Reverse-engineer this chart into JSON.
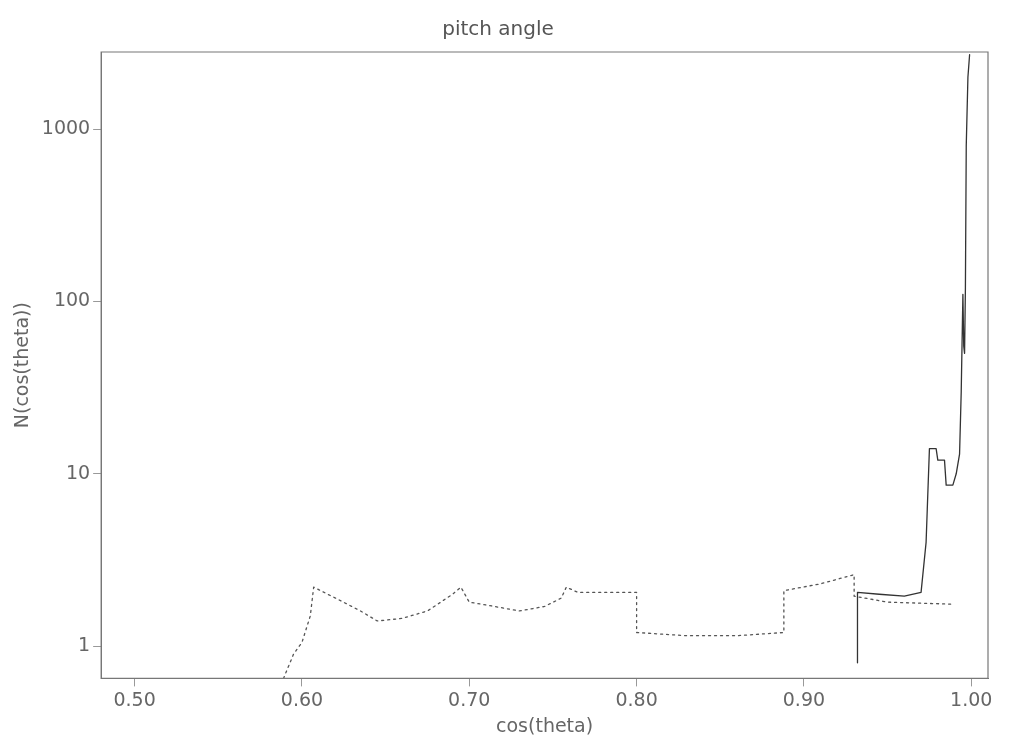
{
  "chart_data": {
    "type": "line",
    "title": "pitch angle",
    "xlabel": "cos(theta)",
    "ylabel": "N(cos(theta))",
    "xlim": [
      0.48,
      1.01
    ],
    "xticks": [
      {
        "value": 0.5,
        "label": "0.50"
      },
      {
        "value": 0.6,
        "label": "0.60"
      },
      {
        "value": 0.7,
        "label": "0.70"
      },
      {
        "value": 0.8,
        "label": "0.80"
      },
      {
        "value": 0.9,
        "label": "0.90"
      },
      {
        "value": 1.0,
        "label": "1.00"
      }
    ],
    "ylim": [
      0.65,
      2800
    ],
    "yticks": [
      1,
      10,
      100,
      1000
    ],
    "log": "y",
    "grid": false,
    "legend": false,
    "series": [
      {
        "color": "#555555",
        "line_style": "dotted",
        "x": [
          0.589,
          0.595,
          0.6,
          0.605,
          0.607,
          0.62,
          0.635,
          0.645,
          0.66,
          0.675,
          0.69,
          0.695,
          0.7,
          0.715,
          0.73,
          0.745,
          0.755,
          0.758,
          0.765,
          0.8,
          0.8,
          0.83,
          0.86,
          0.888,
          0.888,
          0.91,
          0.93,
          0.93,
          0.95,
          0.99
        ],
        "values": [
          0.65,
          0.9,
          1.05,
          1.5,
          2.2,
          1.9,
          1.6,
          1.4,
          1.45,
          1.6,
          2.0,
          2.2,
          1.8,
          1.7,
          1.6,
          1.7,
          1.9,
          2.2,
          2.05,
          2.05,
          1.2,
          1.15,
          1.15,
          1.2,
          2.1,
          2.3,
          2.6,
          1.95,
          1.8,
          1.75
        ]
      },
      {
        "color": "#333333",
        "line_style": "solid",
        "x": [
          0.932,
          0.932,
          0.945,
          0.96,
          0.97,
          0.973,
          0.975,
          0.979,
          0.98,
          0.984,
          0.985,
          0.989,
          0.991,
          0.993,
          0.994,
          0.995,
          0.9955,
          0.996,
          0.9965,
          0.997,
          0.998,
          0.999
        ],
        "values": [
          0.8,
          2.05,
          2.0,
          1.95,
          2.05,
          4,
          14,
          14,
          12,
          12,
          8.6,
          8.6,
          10,
          13,
          30,
          110,
          55,
          50,
          120,
          800,
          2000,
          2700
        ]
      }
    ]
  }
}
